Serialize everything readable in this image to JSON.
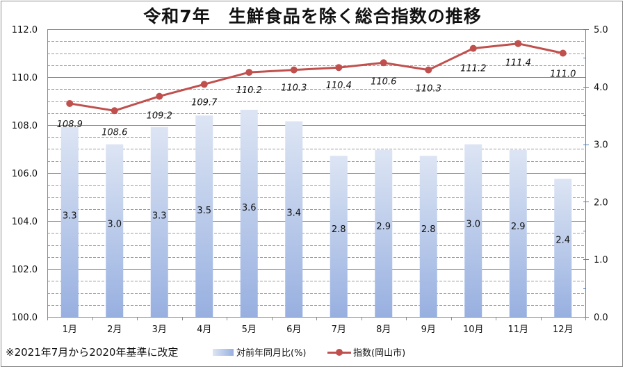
{
  "title": "令和7年　生鮮食品を除く総合指数の推移",
  "footnote": "※2021年7月から2020年基準に改定",
  "legend": {
    "bar_label": "対前年同月比(%)",
    "line_label": "指数(岡山市)"
  },
  "colors": {
    "line": "#c0504d",
    "bar_top": "#dde5f4",
    "bar_bottom": "#98b0e0",
    "right_axis": "#4f81bd"
  },
  "chart_data": {
    "type": "bar+line",
    "title": "令和7年　生鮮食品を除く総合指数の推移",
    "categories": [
      "1月",
      "2月",
      "3月",
      "4月",
      "5月",
      "6月",
      "7月",
      "8月",
      "9月",
      "10月",
      "11月",
      "12月"
    ],
    "series": [
      {
        "name": "対前年同月比(%)",
        "type": "bar",
        "axis": "right",
        "values": [
          3.3,
          3.0,
          3.3,
          3.5,
          3.6,
          3.4,
          2.8,
          2.9,
          2.8,
          3.0,
          2.9,
          2.4
        ]
      },
      {
        "name": "指数(岡山市)",
        "type": "line",
        "axis": "left",
        "values": [
          108.9,
          108.6,
          109.2,
          109.7,
          110.2,
          110.3,
          110.4,
          110.6,
          110.3,
          111.2,
          111.4,
          111.0
        ]
      }
    ],
    "left_axis": {
      "ylim": [
        100.0,
        112.0
      ],
      "ticks": [
        "100.0",
        "102.0",
        "104.0",
        "106.0",
        "108.0",
        "110.0",
        "112.0"
      ]
    },
    "right_axis": {
      "ylim": [
        0.0,
        5.0
      ],
      "ticks": [
        "0.0",
        "1.0",
        "2.0",
        "3.0",
        "4.0",
        "5.0"
      ]
    },
    "grid": true,
    "legend_position": "bottom"
  }
}
